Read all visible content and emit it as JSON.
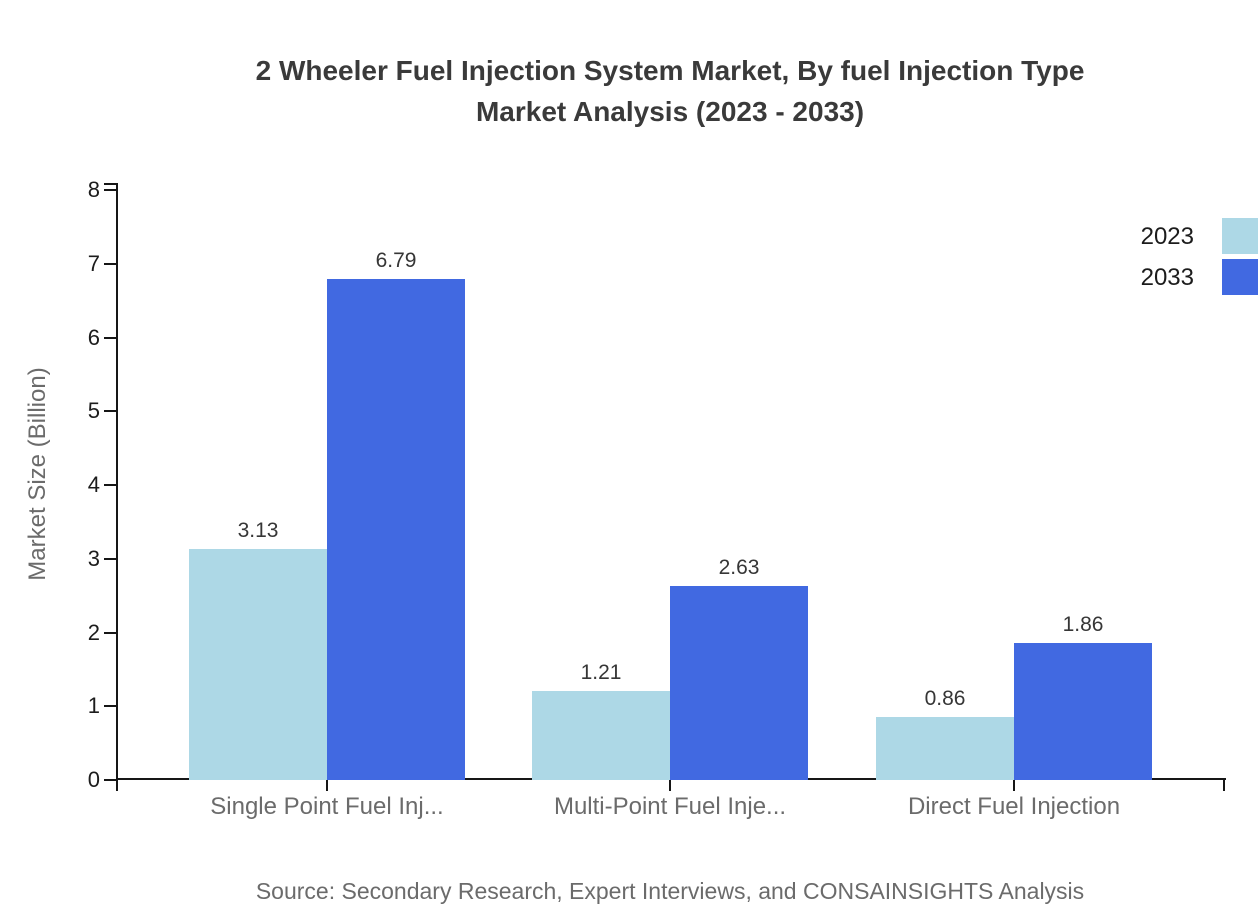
{
  "title": {
    "line1": "2 Wheeler Fuel Injection System Market, By fuel Injection Type",
    "line2": "Market Analysis (2023 - 2033)"
  },
  "chart_data": {
    "type": "bar",
    "categories": [
      "Single Point Fuel Inj...",
      "Multi-Point Fuel Inje...",
      "Direct Fuel Injection"
    ],
    "series": [
      {
        "name": "2023",
        "color": "#ADD8E6",
        "values": [
          3.13,
          1.21,
          0.86
        ]
      },
      {
        "name": "2033",
        "color": "#4169E1",
        "values": [
          6.79,
          2.63,
          1.86
        ]
      }
    ],
    "ylabel": "Market Size (Billion)",
    "ylim": [
      0,
      8
    ],
    "yticks": [
      0,
      1,
      2,
      3,
      4,
      5,
      6,
      7,
      8
    ],
    "grid": false,
    "legend_position": "top-right",
    "value_labels_shown": true,
    "value_label_format": "0.00"
  },
  "footer": {
    "source": "Source: Secondary Research, Expert Interviews, and CONSAINSIGHTS Analysis"
  },
  "colors": {
    "series_2023": "#ADD8E6",
    "series_2033": "#4169E1",
    "title_text": "#3A3A3A",
    "axis_line": "#161616",
    "tick_label": "#1C1C1C",
    "muted_text": "#6B6B6B",
    "value_label": "#363636",
    "background": "#FFFFFF"
  }
}
